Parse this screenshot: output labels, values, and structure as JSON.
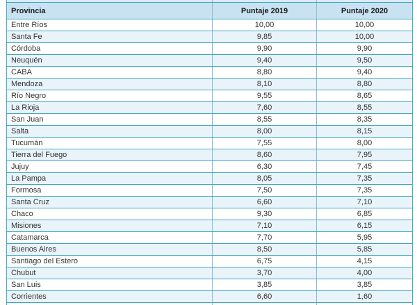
{
  "table": {
    "columns": [
      {
        "label": "Provincia",
        "align": "left"
      },
      {
        "label": "Puntaje 2019",
        "align": "center"
      },
      {
        "label": "Puntaje 2020",
        "align": "center"
      }
    ],
    "rows": [
      {
        "provincia": "Entre Ríos",
        "puntaje_2019": "10,00",
        "puntaje_2020": "10,00"
      },
      {
        "provincia": "Santa Fe",
        "puntaje_2019": "9,85",
        "puntaje_2020": "10,00"
      },
      {
        "provincia": "Córdoba",
        "puntaje_2019": "9,90",
        "puntaje_2020": "9,90"
      },
      {
        "provincia": "Neuquén",
        "puntaje_2019": "9,40",
        "puntaje_2020": "9,50"
      },
      {
        "provincia": "CABA",
        "puntaje_2019": "8,80",
        "puntaje_2020": "9,40"
      },
      {
        "provincia": "Mendoza",
        "puntaje_2019": "8,10",
        "puntaje_2020": "8,80"
      },
      {
        "provincia": "Río Negro",
        "puntaje_2019": "9,55",
        "puntaje_2020": "8,65"
      },
      {
        "provincia": "La Rioja",
        "puntaje_2019": "7,60",
        "puntaje_2020": "8,55"
      },
      {
        "provincia": "San Juan",
        "puntaje_2019": "8,55",
        "puntaje_2020": "8,35"
      },
      {
        "provincia": "Salta",
        "puntaje_2019": "8,00",
        "puntaje_2020": "8,15"
      },
      {
        "provincia": "Tucumán",
        "puntaje_2019": "7,55",
        "puntaje_2020": "8,00"
      },
      {
        "provincia": "Tierra del Fuego",
        "puntaje_2019": "8,60",
        "puntaje_2020": "7,95"
      },
      {
        "provincia": "Jujuy",
        "puntaje_2019": "6,30",
        "puntaje_2020": "7,45"
      },
      {
        "provincia": "La Pampa",
        "puntaje_2019": "8,05",
        "puntaje_2020": "7,35"
      },
      {
        "provincia": "Formosa",
        "puntaje_2019": "7,50",
        "puntaje_2020": "7,35"
      },
      {
        "provincia": "Santa Cruz",
        "puntaje_2019": "6,60",
        "puntaje_2020": "7,10"
      },
      {
        "provincia": "Chaco",
        "puntaje_2019": "9,30",
        "puntaje_2020": "6,85"
      },
      {
        "provincia": "Misiones",
        "puntaje_2019": "7,10",
        "puntaje_2020": "6,15"
      },
      {
        "provincia": "Catamarca",
        "puntaje_2019": "7,70",
        "puntaje_2020": "5,95"
      },
      {
        "provincia": "Buenos Aires",
        "puntaje_2019": "8,50",
        "puntaje_2020": "5,85"
      },
      {
        "provincia": "Santiago del Estero",
        "puntaje_2019": "6,75",
        "puntaje_2020": "4,15"
      },
      {
        "provincia": "Chubut",
        "puntaje_2019": "3,70",
        "puntaje_2020": "4,00"
      },
      {
        "provincia": "San Luis",
        "puntaje_2019": "3,85",
        "puntaje_2020": "3,85"
      },
      {
        "provincia": "Corrientes",
        "puntaje_2019": "6,60",
        "puntaje_2020": "1,60"
      }
    ]
  },
  "chart_data": {
    "type": "table",
    "categories": [
      "Entre Ríos",
      "Santa Fe",
      "Córdoba",
      "Neuquén",
      "CABA",
      "Mendoza",
      "Río Negro",
      "La Rioja",
      "San Juan",
      "Salta",
      "Tucumán",
      "Tierra del Fuego",
      "Jujuy",
      "La Pampa",
      "Formosa",
      "Santa Cruz",
      "Chaco",
      "Misiones",
      "Catamarca",
      "Buenos Aires",
      "Santiago del Estero",
      "Chubut",
      "San Luis",
      "Corrientes"
    ],
    "series": [
      {
        "name": "Puntaje 2019",
        "values": [
          10.0,
          9.85,
          9.9,
          9.4,
          8.8,
          8.1,
          9.55,
          7.6,
          8.55,
          8.0,
          7.55,
          8.6,
          6.3,
          8.05,
          7.5,
          6.6,
          9.3,
          7.1,
          7.7,
          8.5,
          6.75,
          3.7,
          3.85,
          6.6
        ]
      },
      {
        "name": "Puntaje 2020",
        "values": [
          10.0,
          10.0,
          9.9,
          9.5,
          9.4,
          8.8,
          8.65,
          8.55,
          8.35,
          8.15,
          8.0,
          7.95,
          7.45,
          7.35,
          7.35,
          7.1,
          6.85,
          6.15,
          5.95,
          5.85,
          4.15,
          4.0,
          3.85,
          1.6
        ]
      }
    ],
    "row_label_header": "Provincia",
    "layout": {
      "first_column_align": "left",
      "value_columns_align": "center",
      "striped": true,
      "clipped_top": true,
      "clipped_bottom": true
    }
  },
  "colors": {
    "header_bg": "#c9e2f2",
    "stripe_bg": "#e9f3fa",
    "row_bg": "#ffffff",
    "border_horizontal": "#3fa8bf",
    "border_vertical_inner": "#8fbcd1",
    "border_outer": "#4bacc6",
    "header_text": "#1a1a1a",
    "body_text": "#333333"
  }
}
